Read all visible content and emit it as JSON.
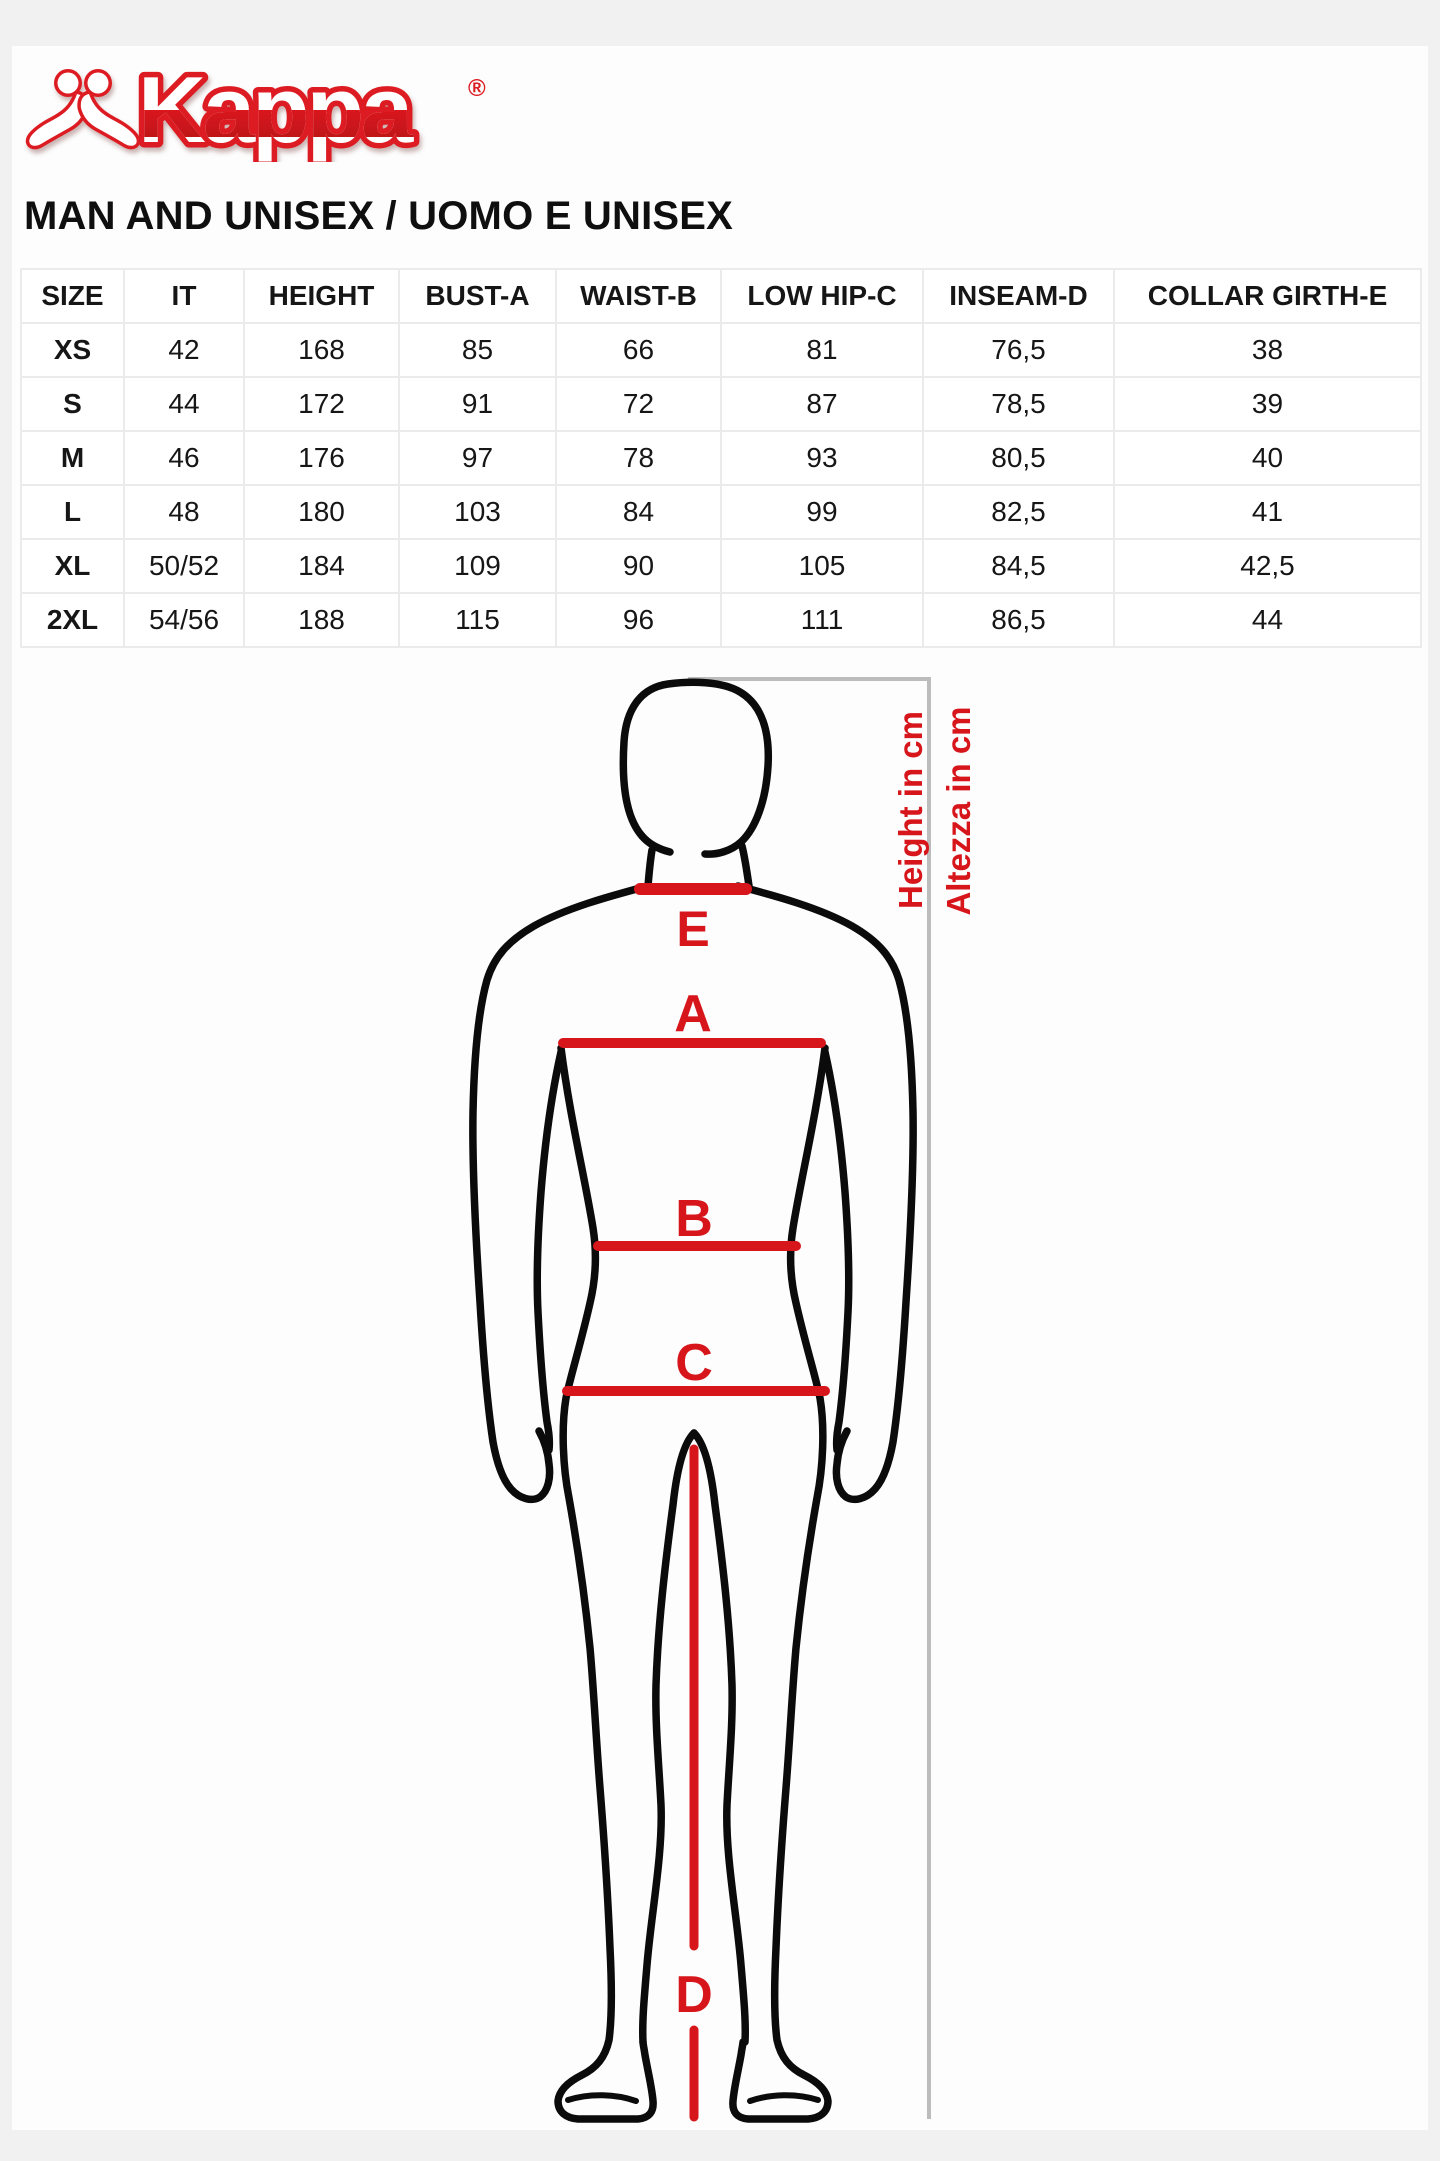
{
  "page": {
    "background": "#f2f1f2",
    "card_background": "#fdfdfd"
  },
  "brand": {
    "logo_text": "Kappa",
    "registered_mark": "®",
    "logo_red": "#dc1b20",
    "logo_dark_red": "#b10e13"
  },
  "heading": {
    "title": "MAN AND UNISEX / UOMO E UNISEX"
  },
  "size_table": {
    "headers": [
      "SIZE",
      "IT",
      "HEIGHT",
      "BUST-A",
      "WAIST-B",
      "LOW HIP-C",
      "INSEAM-D",
      "COLLAR GIRTH-E"
    ],
    "rows": [
      [
        "XS",
        "42",
        "168",
        "85",
        "66",
        "81",
        "76,5",
        "38"
      ],
      [
        "S",
        "44",
        "172",
        "91",
        "72",
        "87",
        "78,5",
        "39"
      ],
      [
        "M",
        "46",
        "176",
        "97",
        "78",
        "93",
        "80,5",
        "40"
      ],
      [
        "L",
        "48",
        "180",
        "103",
        "84",
        "99",
        "82,5",
        "41"
      ],
      [
        "XL",
        "50/52",
        "184",
        "109",
        "90",
        "105",
        "84,5",
        "42,5"
      ],
      [
        "2XL",
        "54/56",
        "188",
        "115",
        "96",
        "111",
        "86,5",
        "44"
      ]
    ]
  },
  "figure": {
    "labels": {
      "collar": "E",
      "bust": "A",
      "waist": "B",
      "low_hip": "C",
      "inseam": "D"
    },
    "height_caption_en": "Height in cm",
    "height_caption_it": "Altezza in cm",
    "accent_red": "#d7161c",
    "outline_color": "#0b0b0b",
    "bracket_color": "#bcbcbc"
  }
}
